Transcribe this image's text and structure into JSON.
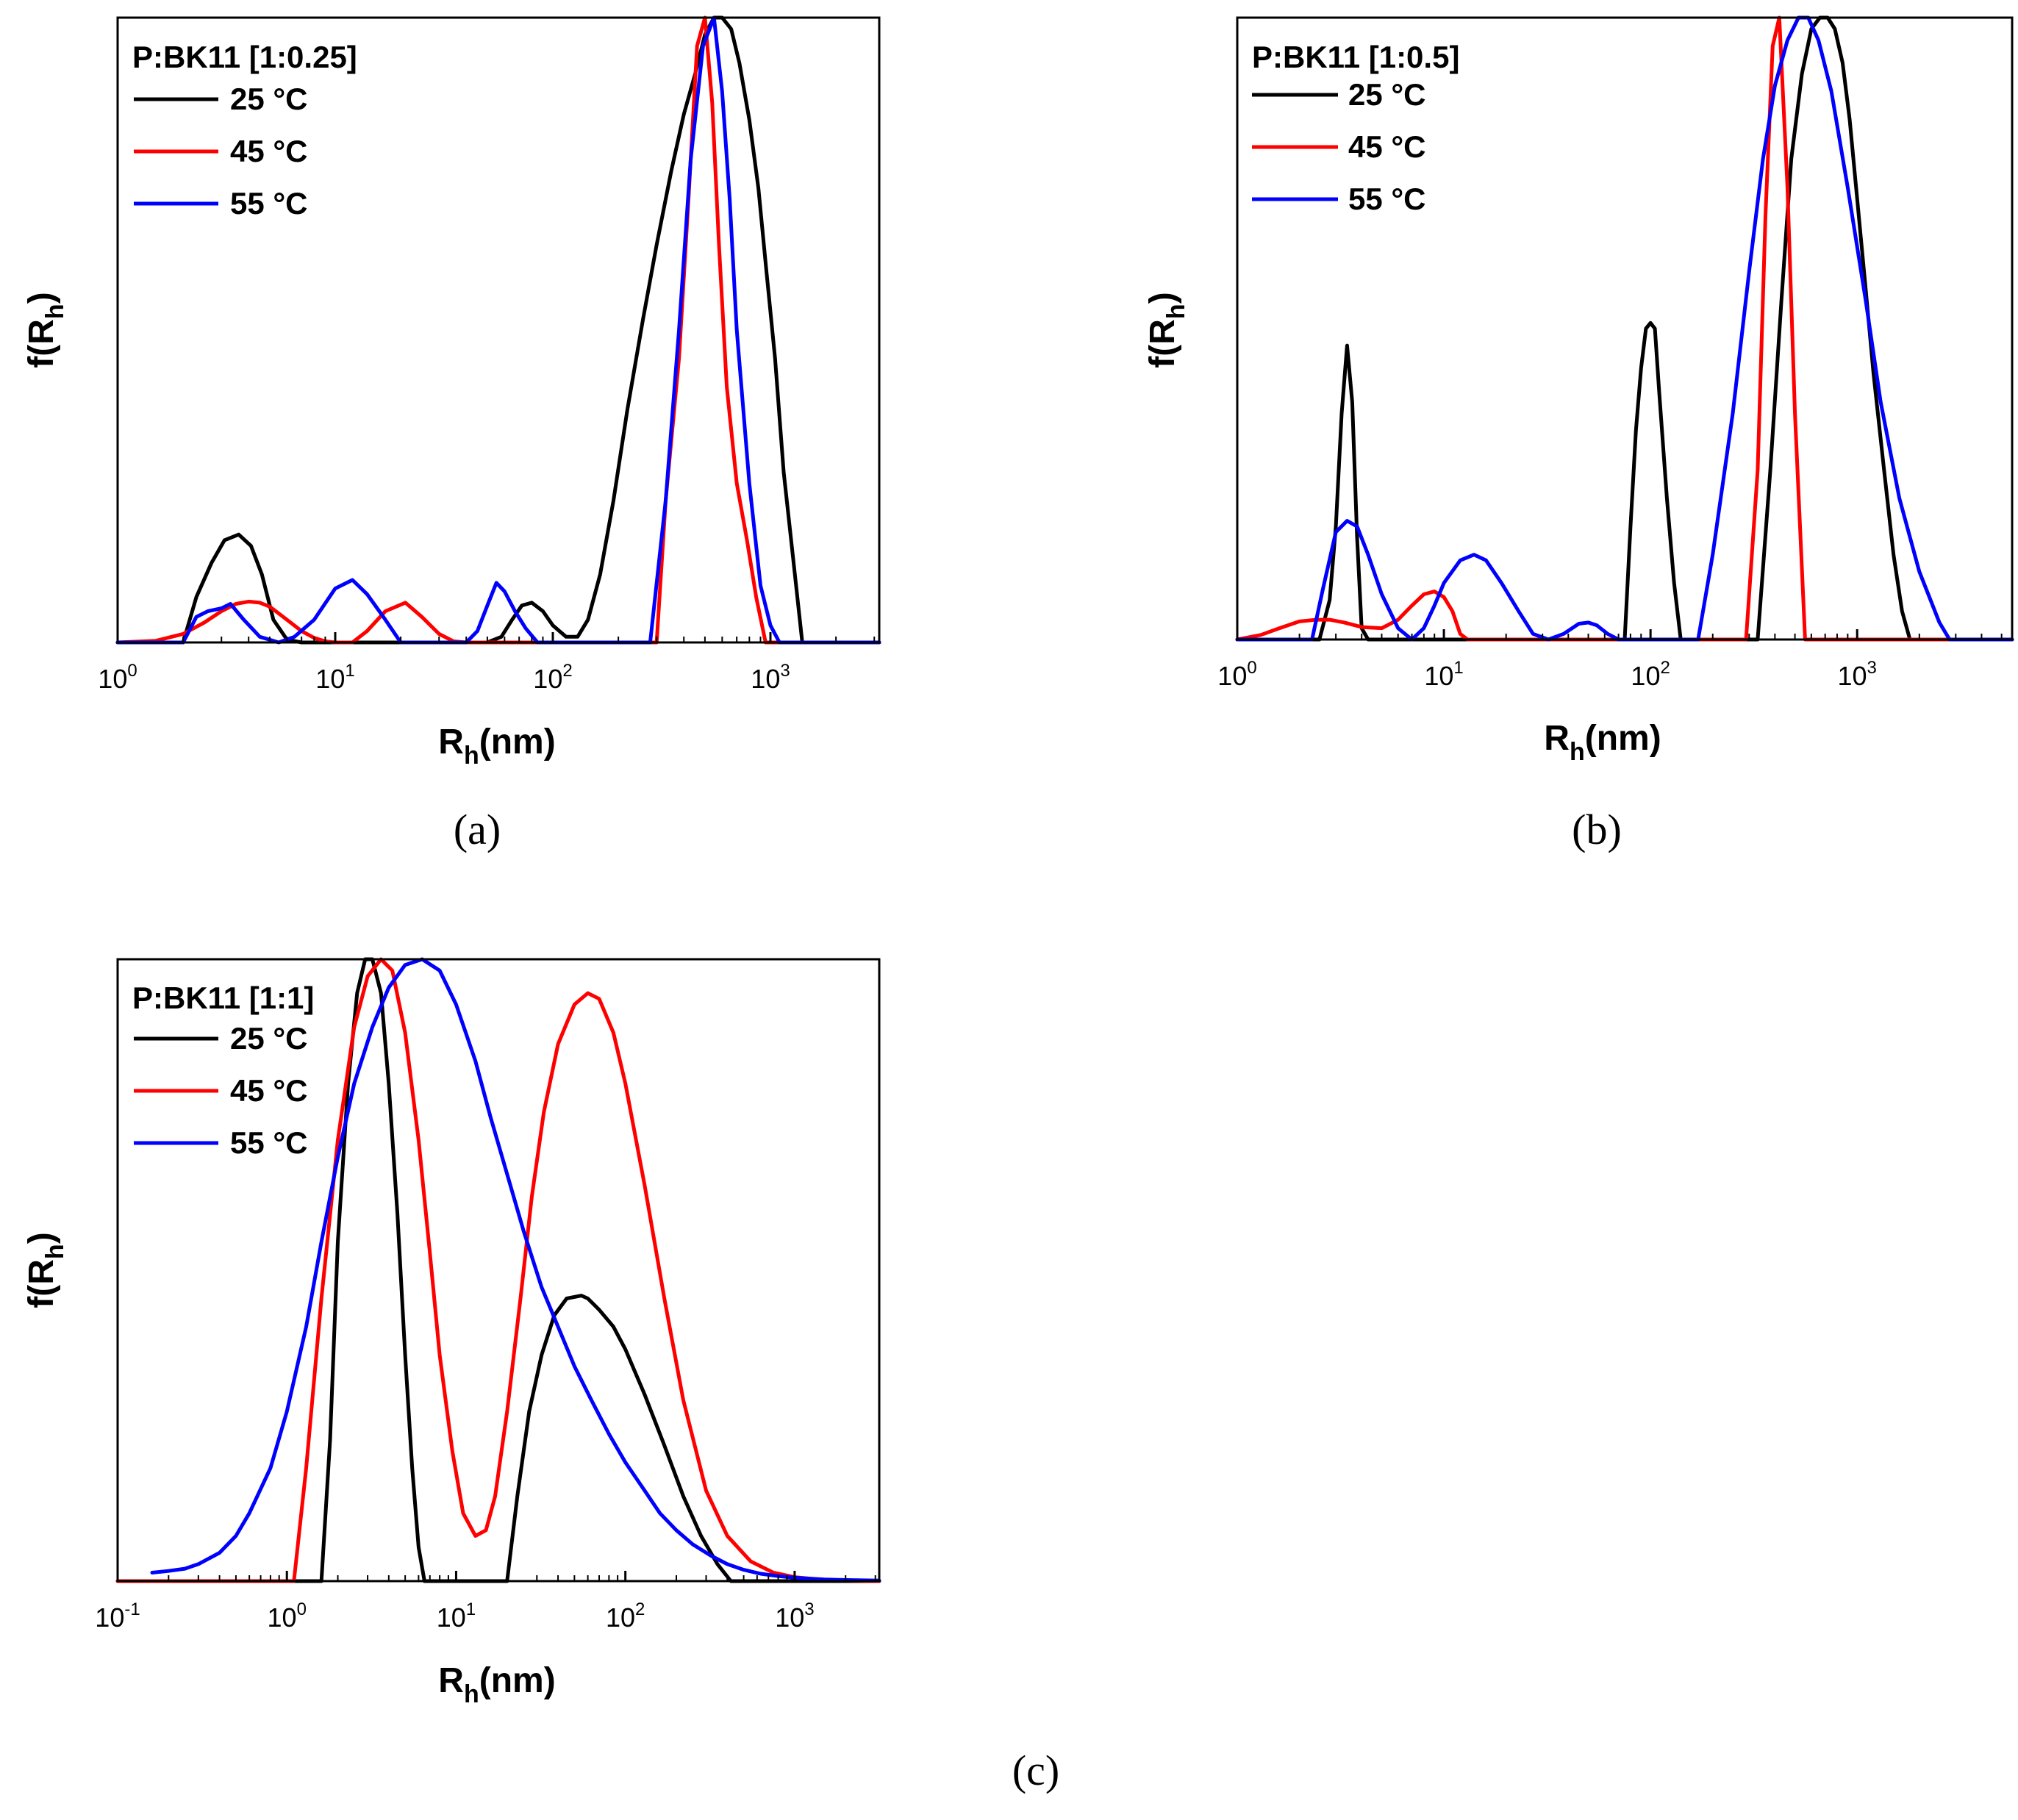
{
  "figure": {
    "panels": [
      {
        "caption": "(a)",
        "chart_title": "P:BK11 [1:0.25]",
        "xlabel": "R",
        "xlabel_sub": "h",
        "xlabel_unit": "(nm)",
        "ylabel": "f(R",
        "ylabel_sub": "h",
        "ylabel_close": ")"
      },
      {
        "caption": "(b)",
        "chart_title": "P:BK11 [1:0.5]",
        "xlabel": "R",
        "xlabel_sub": "h",
        "xlabel_unit": "(nm)",
        "ylabel": "f(R",
        "ylabel_sub": "h",
        "ylabel_close": ")"
      },
      {
        "caption": "(c)",
        "chart_title": "P:BK11 [1:1]",
        "xlabel": "R",
        "xlabel_sub": "h",
        "xlabel_unit": "(nm)",
        "ylabel": "f(R",
        "ylabel_sub": "h",
        "ylabel_close": ")"
      }
    ]
  },
  "chart_data": [
    {
      "type": "line",
      "title": "P:BK11 [1:0.25]",
      "xlabel": "Rh(nm)",
      "ylabel": "f(Rh)",
      "xscale": "log",
      "xlim": [
        1,
        3162
      ],
      "ylim": [
        0,
        1.1
      ],
      "xticks": [
        {
          "value": 1,
          "base": "10",
          "exp": "0"
        },
        {
          "value": 10,
          "base": "10",
          "exp": "1"
        },
        {
          "value": 100,
          "base": "10",
          "exp": "2"
        },
        {
          "value": 1000,
          "base": "10",
          "exp": "3"
        }
      ],
      "legend_position": "top-left",
      "series": [
        {
          "name": "25 °C",
          "color": "#000000",
          "x": [
            1,
            2,
            2.3,
            2.7,
            3.1,
            3.6,
            4.1,
            4.6,
            5.2,
            6,
            7,
            40,
            50,
            58,
            65,
            72,
            80,
            90,
            100,
            115,
            130,
            145,
            165,
            190,
            220,
            260,
            300,
            350,
            400,
            450,
            500,
            550,
            600,
            660,
            720,
            800,
            880,
            960,
            1050,
            1150,
            1270,
            1400,
            1600,
            3162
          ],
          "y": [
            0,
            0,
            0.08,
            0.14,
            0.18,
            0.19,
            0.17,
            0.12,
            0.04,
            0.005,
            0,
            0,
            0,
            0.01,
            0.04,
            0.065,
            0.07,
            0.055,
            0.03,
            0.01,
            0.01,
            0.04,
            0.12,
            0.25,
            0.41,
            0.57,
            0.7,
            0.83,
            0.93,
            1.0,
            1.07,
            1.1,
            1.1,
            1.08,
            1.02,
            0.92,
            0.8,
            0.65,
            0.5,
            0.3,
            0.15,
            0,
            0,
            0
          ]
        },
        {
          "name": "45 °C",
          "color": "#ff0000",
          "x": [
            1,
            1.5,
            2,
            2.5,
            3,
            3.5,
            4,
            4.5,
            5,
            6,
            7,
            8,
            9,
            10,
            12,
            14,
            17,
            21,
            25,
            30,
            35,
            40,
            300,
            330,
            380,
            420,
            460,
            500,
            540,
            580,
            630,
            700,
            780,
            860,
            950,
            3162
          ],
          "y": [
            0,
            0.003,
            0.015,
            0.035,
            0.055,
            0.068,
            0.072,
            0.07,
            0.063,
            0.04,
            0.02,
            0.008,
            0.002,
            0,
            0,
            0.02,
            0.055,
            0.07,
            0.045,
            0.015,
            0.002,
            0,
            0,
            0.25,
            0.5,
            0.78,
            1.05,
            1.1,
            0.95,
            0.7,
            0.45,
            0.28,
            0.18,
            0.08,
            0,
            0
          ]
        },
        {
          "name": "55 °C",
          "color": "#0000ff",
          "x": [
            1,
            2,
            2.3,
            2.6,
            3,
            3.3,
            3.8,
            4.5,
            5.5,
            6.5,
            8,
            10,
            12,
            14,
            17,
            20,
            40,
            45,
            50,
            55,
            60,
            67,
            75,
            85,
            280,
            330,
            380,
            430,
            490,
            550,
            600,
            650,
            700,
            800,
            900,
            1000,
            1100,
            3162
          ],
          "y": [
            0,
            0,
            0.045,
            0.055,
            0.06,
            0.068,
            0.04,
            0.01,
            0,
            0.01,
            0.04,
            0.095,
            0.11,
            0.085,
            0.04,
            0,
            0,
            0.02,
            0.065,
            0.105,
            0.09,
            0.055,
            0.025,
            0,
            0,
            0.25,
            0.55,
            0.85,
            1.05,
            1.1,
            0.97,
            0.78,
            0.55,
            0.28,
            0.1,
            0.03,
            0,
            0
          ]
        }
      ]
    },
    {
      "type": "line",
      "title": "P:BK11 [1:0.5]",
      "xlabel": "Rh(nm)",
      "ylabel": "f(Rh)",
      "xscale": "log",
      "xlim": [
        1,
        5623
      ],
      "ylim": [
        0,
        1.1
      ],
      "xticks": [
        {
          "value": 1,
          "base": "10",
          "exp": "0"
        },
        {
          "value": 10,
          "base": "10",
          "exp": "1"
        },
        {
          "value": 100,
          "base": "10",
          "exp": "2"
        },
        {
          "value": 1000,
          "base": "10",
          "exp": "3"
        }
      ],
      "legend_position": "top-left",
      "series": [
        {
          "name": "25 °C",
          "color": "#000000",
          "x": [
            1,
            2.5,
            2.8,
            3.0,
            3.2,
            3.4,
            3.6,
            3.8,
            4.0,
            4.3,
            75,
            80,
            85,
            90,
            95,
            100,
            105,
            110,
            120,
            130,
            140,
            330,
            380,
            430,
            480,
            540,
            600,
            660,
            720,
            780,
            850,
            920,
            1000,
            1100,
            1200,
            1350,
            1500,
            1650,
            1800,
            5623
          ],
          "y": [
            0,
            0,
            0.07,
            0.2,
            0.4,
            0.52,
            0.42,
            0.18,
            0.02,
            0,
            0,
            0.2,
            0.37,
            0.48,
            0.55,
            0.56,
            0.55,
            0.44,
            0.25,
            0.1,
            0,
            0,
            0.3,
            0.6,
            0.85,
            1.0,
            1.08,
            1.1,
            1.1,
            1.08,
            1.02,
            0.92,
            0.78,
            0.62,
            0.47,
            0.3,
            0.15,
            0.05,
            0,
            0
          ]
        },
        {
          "name": "45 °C",
          "color": "#ff0000",
          "x": [
            1,
            1.3,
            1.6,
            2.0,
            2.4,
            2.8,
            3.3,
            4.0,
            5.0,
            6.0,
            7.0,
            8.0,
            9.0,
            10.0,
            11.0,
            12.0,
            13.0,
            290,
            330,
            360,
            390,
            420,
            460,
            500,
            560,
            5623
          ],
          "y": [
            0,
            0.008,
            0.02,
            0.032,
            0.035,
            0.035,
            0.03,
            0.022,
            0.02,
            0.035,
            0.06,
            0.08,
            0.085,
            0.075,
            0.05,
            0.01,
            0,
            0,
            0.3,
            0.75,
            1.05,
            1.1,
            0.8,
            0.4,
            0,
            0
          ]
        },
        {
          "name": "55 °C",
          "color": "#0000ff",
          "x": [
            1,
            2.3,
            2.6,
            3.0,
            3.4,
            3.8,
            4.3,
            5.0,
            6.0,
            7.0,
            8.0,
            9.0,
            10,
            12,
            14,
            16,
            19,
            23,
            27,
            32,
            38,
            45,
            50,
            55,
            62,
            70,
            170,
            200,
            250,
            300,
            350,
            400,
            460,
            520,
            580,
            650,
            750,
            900,
            1100,
            1300,
            1600,
            2000,
            2500,
            2800,
            5623
          ],
          "y": [
            0,
            0,
            0.09,
            0.19,
            0.21,
            0.2,
            0.15,
            0.08,
            0.02,
            0,
            0.02,
            0.06,
            0.1,
            0.14,
            0.15,
            0.14,
            0.1,
            0.05,
            0.01,
            0,
            0.01,
            0.028,
            0.03,
            0.025,
            0.01,
            0,
            0,
            0.15,
            0.4,
            0.65,
            0.85,
            0.98,
            1.06,
            1.1,
            1.1,
            1.06,
            0.97,
            0.8,
            0.6,
            0.42,
            0.25,
            0.12,
            0.03,
            0,
            0
          ]
        }
      ]
    },
    {
      "type": "line",
      "title": "P:BK11 [1:1]",
      "xlabel": "Rh(nm)",
      "ylabel": "f(Rh)",
      "xscale": "log",
      "xlim": [
        0.1,
        3162
      ],
      "ylim": [
        0,
        1.1
      ],
      "xticks": [
        {
          "value": 0.1,
          "base": "10",
          "exp": "-1"
        },
        {
          "value": 1,
          "base": "10",
          "exp": "0"
        },
        {
          "value": 10,
          "base": "10",
          "exp": "1"
        },
        {
          "value": 100,
          "base": "10",
          "exp": "2"
        },
        {
          "value": 1000,
          "base": "10",
          "exp": "3"
        }
      ],
      "legend_position": "top-left",
      "series": [
        {
          "name": "25 °C",
          "color": "#000000",
          "x": [
            0.1,
            1.6,
            1.8,
            2.0,
            2.3,
            2.6,
            2.9,
            3.2,
            3.6,
            4.0,
            4.5,
            5.0,
            5.5,
            6.0,
            6.5,
            20,
            23,
            27,
            32,
            38,
            45,
            55,
            60,
            70,
            85,
            100,
            130,
            170,
            220,
            280,
            350,
            420,
            3162
          ],
          "y": [
            0,
            0,
            0.25,
            0.6,
            0.88,
            1.04,
            1.1,
            1.1,
            1.04,
            0.88,
            0.65,
            0.4,
            0.2,
            0.06,
            0,
            0,
            0.15,
            0.3,
            0.4,
            0.47,
            0.5,
            0.505,
            0.5,
            0.48,
            0.45,
            0.41,
            0.33,
            0.24,
            0.15,
            0.08,
            0.03,
            0,
            0
          ]
        },
        {
          "name": "45 °C",
          "color": "#ff0000",
          "x": [
            0.1,
            1.1,
            1.3,
            1.6,
            2.0,
            2.5,
            3.0,
            3.6,
            4.2,
            5.0,
            6.0,
            7.0,
            8.0,
            9.5,
            11,
            13,
            15,
            17,
            20,
            24,
            28,
            33,
            40,
            50,
            60,
            70,
            85,
            100,
            130,
            170,
            220,
            300,
            400,
            550,
            750,
            1000,
            1500,
            2200,
            3162
          ],
          "y": [
            0,
            0,
            0.2,
            0.5,
            0.78,
            0.98,
            1.07,
            1.1,
            1.08,
            0.97,
            0.78,
            0.58,
            0.4,
            0.23,
            0.12,
            0.08,
            0.09,
            0.15,
            0.3,
            0.5,
            0.68,
            0.83,
            0.95,
            1.02,
            1.04,
            1.03,
            0.97,
            0.88,
            0.7,
            0.5,
            0.32,
            0.16,
            0.08,
            0.035,
            0.015,
            0.007,
            0.002,
            0.001,
            0
          ]
        },
        {
          "name": "55 °C",
          "color": "#0000ff",
          "x": [
            0.16,
            0.2,
            0.25,
            0.3,
            0.4,
            0.5,
            0.6,
            0.8,
            1.0,
            1.3,
            1.6,
            2.0,
            2.5,
            3.2,
            4.0,
            5.0,
            6.3,
            8.0,
            10,
            13,
            16,
            20,
            25,
            32,
            40,
            50,
            63,
            80,
            100,
            130,
            160,
            200,
            250,
            320,
            400,
            500,
            630,
            800,
            1000,
            1500,
            2000,
            3162
          ],
          "y": [
            0.015,
            0.018,
            0.022,
            0.03,
            0.05,
            0.08,
            0.12,
            0.2,
            0.3,
            0.45,
            0.6,
            0.75,
            0.88,
            0.98,
            1.05,
            1.09,
            1.1,
            1.08,
            1.02,
            0.92,
            0.82,
            0.72,
            0.62,
            0.52,
            0.45,
            0.38,
            0.32,
            0.26,
            0.21,
            0.16,
            0.12,
            0.09,
            0.065,
            0.045,
            0.03,
            0.02,
            0.013,
            0.009,
            0.006,
            0.003,
            0.002,
            0.001
          ]
        }
      ]
    }
  ]
}
